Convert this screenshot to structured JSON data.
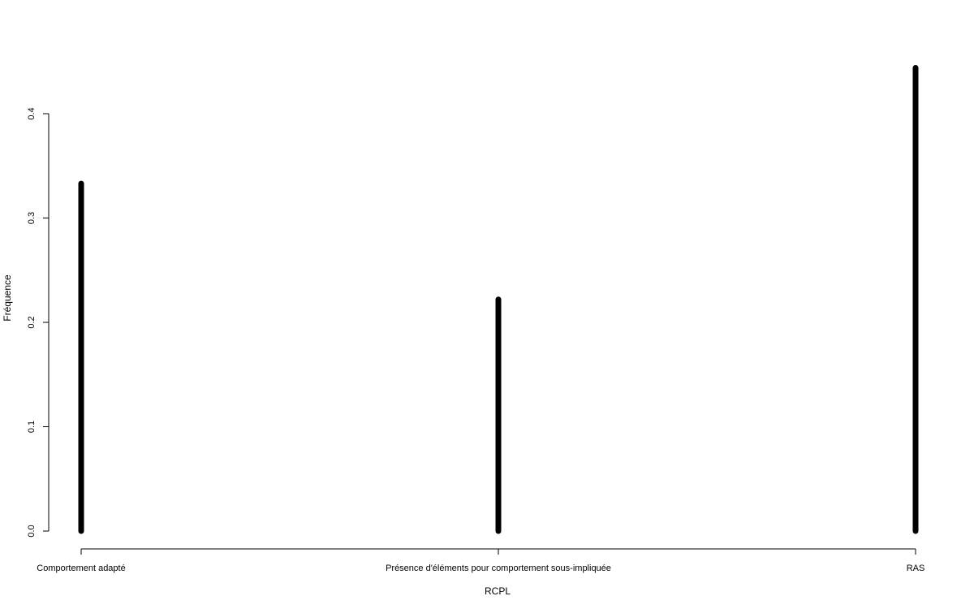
{
  "chart_data": {
    "type": "bar",
    "categories": [
      "Comportement adapté",
      "Présence d'éléments pour comportement sous-impliquée",
      "RAS"
    ],
    "values": [
      0.333,
      0.222,
      0.444
    ],
    "xlabel": "RCPL",
    "ylabel": "Fréquence",
    "yticks": [
      "0.0",
      "0.1",
      "0.2",
      "0.3",
      "0.4"
    ],
    "ylim": [
      0,
      0.45
    ],
    "grid": false,
    "bar_color": "#000000"
  }
}
